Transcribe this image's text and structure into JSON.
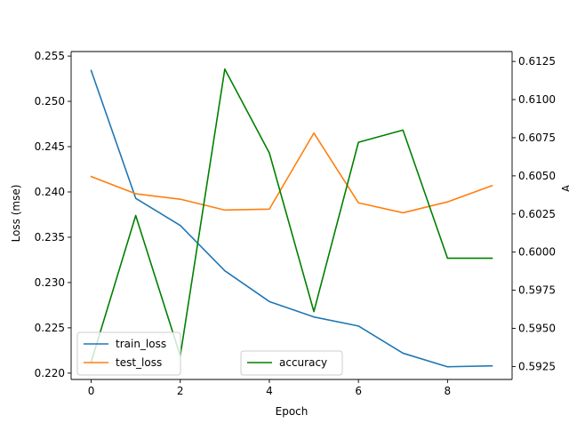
{
  "chart_data": {
    "type": "line",
    "title": "",
    "xlabel": "Epoch",
    "ylabel_left": "Loss (mse)",
    "ylabel_right": "A",
    "x": [
      0,
      1,
      2,
      3,
      4,
      5,
      6,
      7,
      8,
      9
    ],
    "xlim": [
      -0.45,
      9.45
    ],
    "xticks": [
      0,
      2,
      4,
      6,
      8
    ],
    "left_axis": {
      "ylim": [
        0.2193,
        0.2555
      ],
      "ticks": [
        0.22,
        0.225,
        0.23,
        0.235,
        0.24,
        0.245,
        0.25,
        0.255
      ],
      "tick_labels": [
        "0.220",
        "0.225",
        "0.230",
        "0.235",
        "0.240",
        "0.245",
        "0.250",
        "0.255"
      ],
      "series": [
        {
          "name": "train_loss",
          "color": "#1f77b4",
          "values": [
            0.2534,
            0.2393,
            0.2363,
            0.2313,
            0.2279,
            0.2262,
            0.2252,
            0.2222,
            0.2207,
            0.2208
          ]
        },
        {
          "name": "test_loss",
          "color": "#ff7f0e",
          "values": [
            0.2417,
            0.2398,
            0.2392,
            0.238,
            0.2381,
            0.2465,
            0.2388,
            0.2377,
            0.2389,
            0.2407
          ]
        }
      ],
      "legend_position": "lower left"
    },
    "right_axis": {
      "ylim": [
        0.59165,
        0.61315
      ],
      "ticks": [
        0.5925,
        0.595,
        0.5975,
        0.6,
        0.6025,
        0.605,
        0.6075,
        0.61,
        0.6125
      ],
      "tick_labels": [
        "0.5925",
        "0.5950",
        "0.5975",
        "0.6000",
        "0.6025",
        "0.6050",
        "0.6075",
        "0.6100",
        "0.6125"
      ],
      "series": [
        {
          "name": "accuracy",
          "color": "#008000",
          "values": [
            0.5928,
            0.6024,
            0.5932,
            0.612,
            0.6065,
            0.5961,
            0.6072,
            0.608,
            0.5996,
            0.5996
          ]
        }
      ],
      "legend_position": "lower center"
    },
    "grid": false
  }
}
